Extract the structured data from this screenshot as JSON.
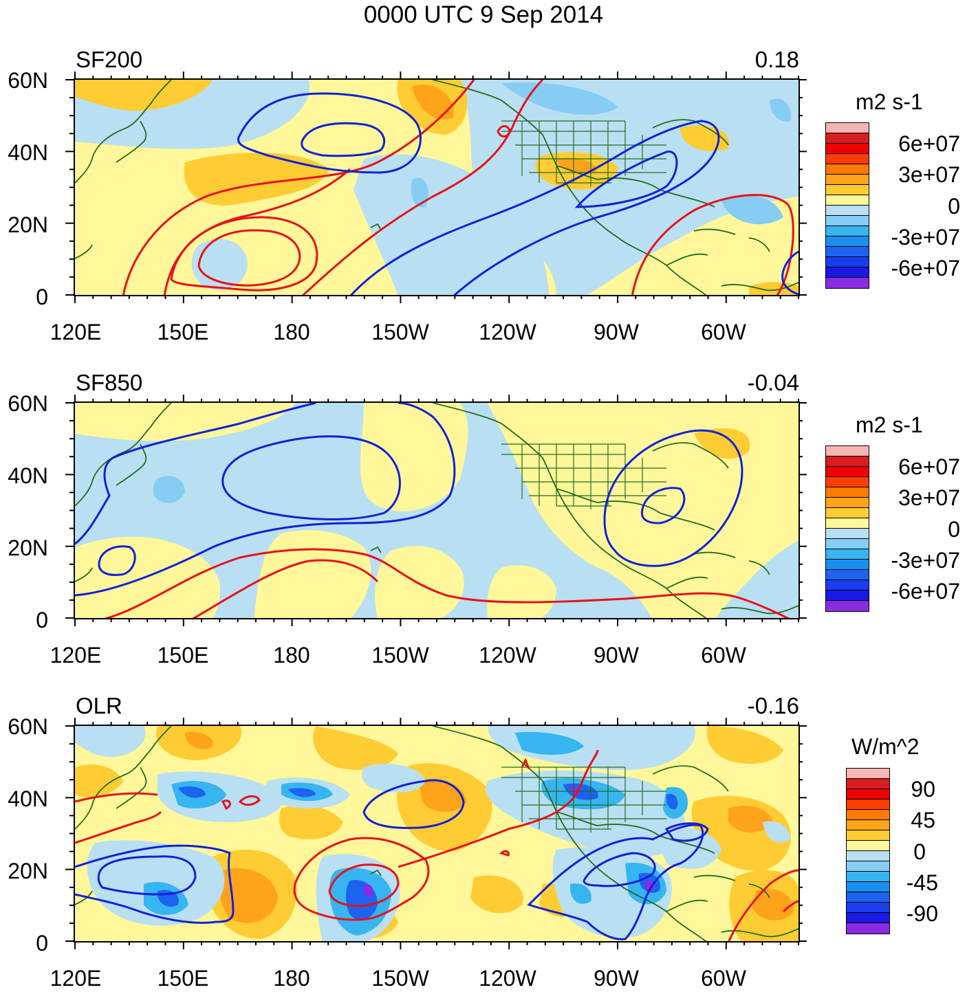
{
  "figure_title": "0000 UTC 9 Sep 2014",
  "colors": {
    "contour_positive": "#e8101a",
    "contour_negative": "#1020d8",
    "coastline": "#1f6b1f"
  },
  "colorbar_sf": {
    "unit": "m2 s-1",
    "labels": [
      "6e+07",
      "3e+07",
      "0",
      "-3e+07",
      "-6e+07"
    ],
    "colors": [
      "#f7b4b4",
      "#d81e1e",
      "#f00000",
      "#ff3d00",
      "#ff7a00",
      "#ffa31a",
      "#ffcc33",
      "#fff799",
      "#b9dff2",
      "#86cdf4",
      "#37b5f0",
      "#1a8ff0",
      "#1c64f0",
      "#1a3df0",
      "#1a1ae6",
      "#8a2be2"
    ]
  },
  "colorbar_olr": {
    "unit": "W/m^2",
    "labels": [
      "90",
      "45",
      "0",
      "-45",
      "-90"
    ],
    "colors": [
      "#f7b4b4",
      "#d81e1e",
      "#f00000",
      "#ff3d00",
      "#ff7a00",
      "#ffa31a",
      "#ffcc33",
      "#fff799",
      "#b9dff2",
      "#86cdf4",
      "#37b5f0",
      "#1a8ff0",
      "#1c64f0",
      "#1a3df0",
      "#1a1ae6",
      "#8a2be2"
    ]
  },
  "chart_data": [
    {
      "type": "heatmap",
      "variable": "SF200",
      "title": "SF200",
      "corner_value": "0.18",
      "units": "m2 s-1",
      "lat_range": [
        0,
        60
      ],
      "lon_range": [
        120,
        320
      ],
      "y_ticks": [
        "60N",
        "40N",
        "20N",
        "0"
      ],
      "x_ticks": [
        "120E",
        "150E",
        "180",
        "150W",
        "120W",
        "90W",
        "60W"
      ],
      "contours": [
        {
          "sign": "positive",
          "label": "red ridge",
          "centroid": [
            165,
            10
          ]
        },
        {
          "sign": "negative",
          "label": "blue low",
          "centroid": [
            195,
            43
          ]
        },
        {
          "sign": "negative",
          "label": "blue low",
          "centroid": [
            285,
            35
          ]
        }
      ]
    },
    {
      "type": "heatmap",
      "variable": "SF850",
      "title": "SF850",
      "corner_value": "-0.04",
      "units": "m2 s-1",
      "lat_range": [
        0,
        60
      ],
      "lon_range": [
        120,
        320
      ],
      "y_ticks": [
        "60N",
        "40N",
        "20N",
        "0"
      ],
      "x_ticks": [
        "120E",
        "150E",
        "180",
        "150W",
        "120W",
        "90W",
        "60W"
      ],
      "contours": [
        {
          "sign": "negative",
          "label": "blue low",
          "centroid": [
            195,
            40
          ]
        },
        {
          "sign": "negative",
          "label": "blue low",
          "centroid": [
            285,
            30
          ]
        },
        {
          "sign": "positive",
          "label": "red high",
          "centroid": [
            210,
            10
          ]
        }
      ]
    },
    {
      "type": "heatmap",
      "variable": "OLR",
      "title": "OLR",
      "corner_value": "-0.16",
      "units": "W/m^2",
      "lat_range": [
        0,
        60
      ],
      "lon_range": [
        120,
        320
      ],
      "y_ticks": [
        "60N",
        "40N",
        "20N",
        "0"
      ],
      "x_ticks": [
        "120E",
        "150E",
        "180",
        "150W",
        "120W",
        "90W",
        "60W"
      ],
      "contours": [
        {
          "sign": "negative",
          "label": "blue",
          "centroid": [
            145,
            15
          ]
        },
        {
          "sign": "positive",
          "label": "red",
          "centroid": [
            200,
            15
          ]
        },
        {
          "sign": "negative",
          "label": "blue",
          "centroid": [
            280,
            15
          ]
        }
      ]
    }
  ]
}
